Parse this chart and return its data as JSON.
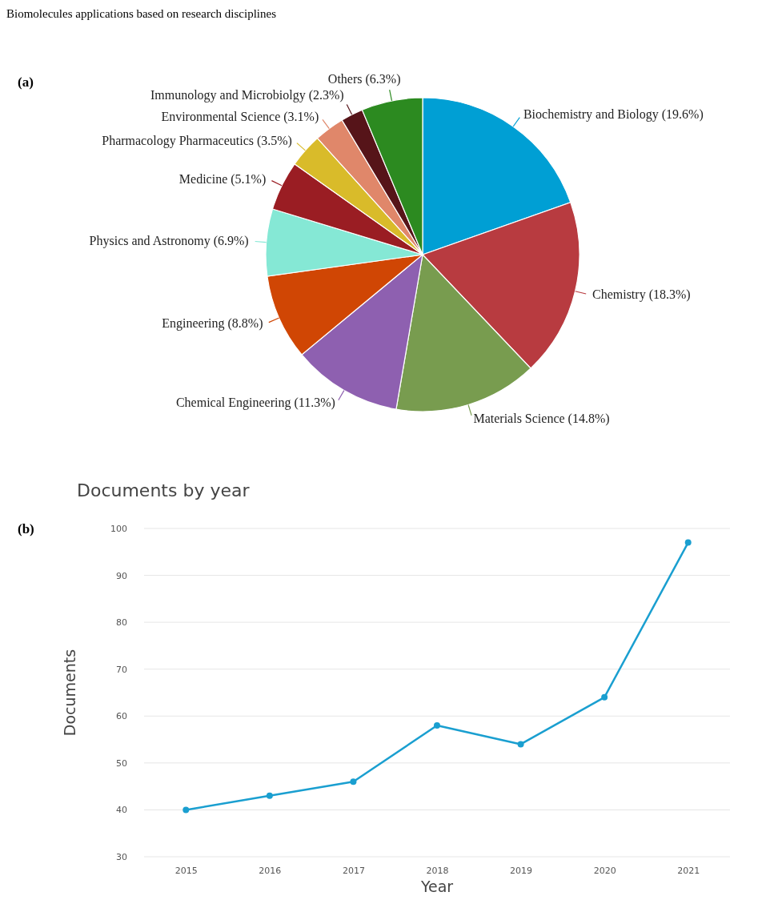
{
  "chart_data": [
    {
      "type": "pie",
      "title": "Biomolecules applications based on research disciplines",
      "annotations": [
        "(a)"
      ],
      "categories": [
        "Biochemistry and Biology (19.6%)",
        "Chemistry (18.3%)",
        "Materials Science (14.8%)",
        "Chemical Engineering (11.3%)",
        "Engineering (8.8%)",
        "Physics and Astronomy (6.9%)",
        "Medicine (5.1%)",
        "Pharmacology Pharmaceutics (3.5%)",
        "Environmental Science (3.1%)",
        "Immunology and Microbiolgy (2.3%)",
        "Others (6.3%)"
      ],
      "values": [
        19.6,
        18.3,
        14.8,
        11.3,
        8.8,
        6.9,
        5.1,
        3.5,
        3.1,
        2.3,
        6.3
      ],
      "colors": [
        "#009fd4",
        "#b83b40",
        "#789c4f",
        "#8e60b0",
        "#d04604",
        "#85e8d5",
        "#9a1d23",
        "#d9bb2a",
        "#e0876a",
        "#561419",
        "#2c8a20"
      ]
    },
    {
      "type": "line",
      "title": "Documents by year",
      "annotations": [
        "(b)"
      ],
      "xlabel": "Year",
      "ylabel": "Documents",
      "categories": [
        "2015",
        "2016",
        "2017",
        "2018",
        "2019",
        "2020",
        "2021"
      ],
      "series": [
        {
          "color": "#1a9fd0",
          "values": [
            40,
            43,
            46,
            58,
            54,
            64,
            97
          ]
        }
      ],
      "ylim": [
        30,
        100
      ],
      "yticks": [
        30,
        40,
        50,
        60,
        70,
        80,
        90,
        100
      ],
      "grid": "y",
      "marker": "circle",
      "line_style": "solid"
    }
  ]
}
